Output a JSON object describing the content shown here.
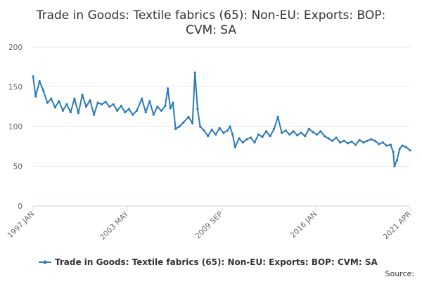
{
  "chart_data": {
    "type": "line",
    "title_lines": [
      "Trade in Goods: Textile fabrics (65): Non-EU: Exports: BOP:",
      "CVM: SA"
    ],
    "xlabel": "",
    "ylabel": "",
    "ylim": [
      0,
      200
    ],
    "yticks": [
      "0",
      "50",
      "100",
      "150",
      "200"
    ],
    "xtick_labels": [
      "1997 JAN",
      "2003 MAY",
      "2009 SEP",
      "2016 JAN",
      "2021 APR"
    ],
    "x_range": [
      "1997-01",
      "2021-04"
    ],
    "grid": true,
    "legend_position": "bottom",
    "series": [
      {
        "name": "Trade in Goods: Textile fabrics (65): Non-EU: Exports: BOP: CVM: SA",
        "color": "#2a7ab8",
        "points": [
          [
            "1997-01",
            163
          ],
          [
            "1997-03",
            138
          ],
          [
            "1997-06",
            157
          ],
          [
            "1997-09",
            145
          ],
          [
            "1997-12",
            130
          ],
          [
            "1998-03",
            135
          ],
          [
            "1998-06",
            124
          ],
          [
            "1998-09",
            132
          ],
          [
            "1998-12",
            120
          ],
          [
            "1999-03",
            128
          ],
          [
            "1999-06",
            118
          ],
          [
            "1999-09",
            135
          ],
          [
            "1999-12",
            117
          ],
          [
            "2000-03",
            140
          ],
          [
            "2000-06",
            125
          ],
          [
            "2000-09",
            133
          ],
          [
            "2000-12",
            115
          ],
          [
            "2001-03",
            130
          ],
          [
            "2001-06",
            128
          ],
          [
            "2001-09",
            131
          ],
          [
            "2001-12",
            125
          ],
          [
            "2002-03",
            128
          ],
          [
            "2002-06",
            120
          ],
          [
            "2002-09",
            126
          ],
          [
            "2002-12",
            118
          ],
          [
            "2003-03",
            122
          ],
          [
            "2003-06",
            115
          ],
          [
            "2003-09",
            120
          ],
          [
            "2004-01",
            135
          ],
          [
            "2004-04",
            118
          ],
          [
            "2004-07",
            132
          ],
          [
            "2004-10",
            115
          ],
          [
            "2005-01",
            125
          ],
          [
            "2005-04",
            120
          ],
          [
            "2005-07",
            126
          ],
          [
            "2005-09",
            148
          ],
          [
            "2005-11",
            123
          ],
          [
            "2006-01",
            130
          ],
          [
            "2006-03",
            97
          ],
          [
            "2006-06",
            100
          ],
          [
            "2006-09",
            105
          ],
          [
            "2007-01",
            112
          ],
          [
            "2007-04",
            104
          ],
          [
            "2007-06",
            168
          ],
          [
            "2007-08",
            122
          ],
          [
            "2007-10",
            100
          ],
          [
            "2008-01",
            95
          ],
          [
            "2008-04",
            88
          ],
          [
            "2008-07",
            96
          ],
          [
            "2008-10",
            90
          ],
          [
            "2009-01",
            98
          ],
          [
            "2009-04",
            92
          ],
          [
            "2009-07",
            95
          ],
          [
            "2009-09",
            100
          ],
          [
            "2009-11",
            90
          ],
          [
            "2010-01",
            74
          ],
          [
            "2010-04",
            85
          ],
          [
            "2010-07",
            80
          ],
          [
            "2010-10",
            84
          ],
          [
            "2011-01",
            86
          ],
          [
            "2011-04",
            80
          ],
          [
            "2011-07",
            90
          ],
          [
            "2011-10",
            87
          ],
          [
            "2012-01",
            94
          ],
          [
            "2012-04",
            88
          ],
          [
            "2012-07",
            97
          ],
          [
            "2012-10",
            112
          ],
          [
            "2013-01",
            92
          ],
          [
            "2013-04",
            95
          ],
          [
            "2013-07",
            90
          ],
          [
            "2013-10",
            94
          ],
          [
            "2014-01",
            89
          ],
          [
            "2014-04",
            92
          ],
          [
            "2014-07",
            88
          ],
          [
            "2014-10",
            97
          ],
          [
            "2015-01",
            93
          ],
          [
            "2015-04",
            90
          ],
          [
            "2015-07",
            94
          ],
          [
            "2015-10",
            88
          ],
          [
            "2016-01",
            85
          ],
          [
            "2016-04",
            82
          ],
          [
            "2016-07",
            86
          ],
          [
            "2016-10",
            80
          ],
          [
            "2017-01",
            82
          ],
          [
            "2017-04",
            79
          ],
          [
            "2017-07",
            81
          ],
          [
            "2017-10",
            77
          ],
          [
            "2018-01",
            83
          ],
          [
            "2018-04",
            80
          ],
          [
            "2018-07",
            82
          ],
          [
            "2018-10",
            84
          ],
          [
            "2019-01",
            82
          ],
          [
            "2019-04",
            78
          ],
          [
            "2019-07",
            80
          ],
          [
            "2019-10",
            76
          ],
          [
            "2020-01",
            77
          ],
          [
            "2020-03",
            68
          ],
          [
            "2020-04",
            50
          ],
          [
            "2020-06",
            58
          ],
          [
            "2020-08",
            72
          ],
          [
            "2020-10",
            76
          ],
          [
            "2021-01",
            74
          ],
          [
            "2021-04",
            70
          ]
        ]
      }
    ]
  },
  "footer": {
    "source_label": "Source:"
  }
}
